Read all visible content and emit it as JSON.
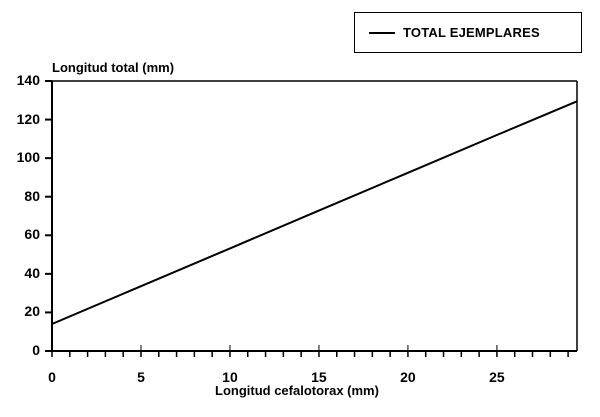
{
  "chart_data": {
    "type": "line",
    "title": "",
    "xlabel": "Longitud cefalotorax (mm)",
    "ylabel": "Longitud total (mm)",
    "xlim": [
      0,
      29.5
    ],
    "ylim": [
      0,
      140
    ],
    "x_ticks": [
      0,
      5,
      10,
      15,
      20,
      25
    ],
    "y_ticks": [
      0,
      20,
      40,
      60,
      80,
      100,
      120,
      140
    ],
    "grid": false,
    "legend_position": "top-right",
    "series": [
      {
        "name": "TOTAL EJEMPLARES",
        "x": [
          0,
          5,
          10,
          15,
          20,
          25,
          29.5
        ],
        "y": [
          14,
          33.6,
          53.2,
          72.8,
          92.4,
          112,
          129.5
        ],
        "color": "#000000"
      }
    ]
  },
  "legend": {
    "label": "TOTAL EJEMPLARES"
  },
  "axes": {
    "ylabel": "Longitud total (mm)",
    "xlabel": "Longitud cefalotorax (mm)",
    "yticks": [
      "0",
      "20",
      "40",
      "60",
      "80",
      "100",
      "120",
      "140"
    ],
    "xticks": [
      "0",
      "5",
      "10",
      "15",
      "20",
      "25"
    ]
  }
}
